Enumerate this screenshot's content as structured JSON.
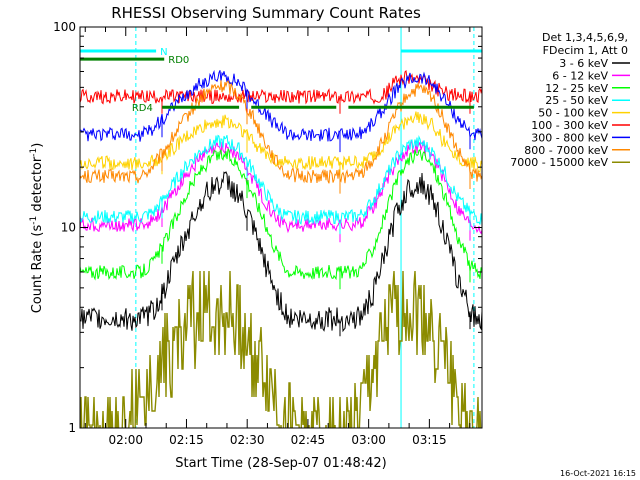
{
  "chart_data": {
    "type": "line",
    "title": "RHESSI Observing Summary Count Rates",
    "xlabel": "Start Time (28-Sep-07 01:48:42)",
    "ylabel": "Count Rate (s",
    "ylabel_sup": "-1",
    "ylabel_tail": " detector",
    "ylabel_sup2": "-1",
    "ylabel_close": ")",
    "footer": "16-Oct-2021 16:15",
    "y_scale": "log",
    "ylim": [
      1,
      100
    ],
    "xlim": [
      "01:48:42",
      "03:28:00"
    ],
    "y_ticks": [
      {
        "value": 1,
        "label": "1"
      },
      {
        "value": 10,
        "label": "10"
      },
      {
        "value": 100,
        "label": "100"
      }
    ],
    "x_ticks": [
      {
        "value": "02:00",
        "label": "02:00"
      },
      {
        "value": "02:15",
        "label": "02:15"
      },
      {
        "value": "02:30",
        "label": "02:30"
      },
      {
        "value": "02:45",
        "label": "02:45"
      },
      {
        "value": "03:00",
        "label": "03:00"
      },
      {
        "value": "03:15",
        "label": "03:15"
      }
    ],
    "legend_header": [
      "Det 1,3,4,5,6,9,",
      "FDecim 1, Att 0"
    ],
    "legend_position": "right",
    "x": [
      "01:48:42",
      "01:52:00",
      "01:56:00",
      "02:00:00",
      "02:04:00",
      "02:07:00",
      "02:10:00",
      "02:13:00",
      "02:16:00",
      "02:19:00",
      "02:22:00",
      "02:25:00",
      "02:28:00",
      "02:31:00",
      "02:34:00",
      "02:37:00",
      "02:40:00",
      "02:43:00",
      "02:46:00",
      "02:49:00",
      "02:52:00",
      "02:55:00",
      "02:58:00",
      "03:01:00",
      "03:04:00",
      "03:07:00",
      "03:10:00",
      "03:13:00",
      "03:16:00",
      "03:19:00",
      "03:22:00",
      "03:25:00",
      "03:28:00"
    ],
    "series": [
      {
        "name": "3 - 6 keV",
        "color": "#000000",
        "values": [
          3.5,
          3.5,
          3.5,
          3.5,
          3.5,
          3.9,
          5.2,
          7.5,
          10.5,
          14.0,
          16.5,
          17.0,
          14.5,
          10.5,
          7.0,
          4.8,
          3.6,
          3.5,
          3.5,
          3.5,
          3.5,
          3.5,
          3.6,
          4.6,
          7.3,
          12.0,
          16.0,
          16.5,
          14.0,
          9.0,
          5.5,
          3.8,
          3.4
        ]
      },
      {
        "name": "6 - 12 keV",
        "color": "#ff00ff",
        "values": [
          10.3,
          10.3,
          10.3,
          10.3,
          10.3,
          11.0,
          13.0,
          16.0,
          19.5,
          22.5,
          24.5,
          25.0,
          22.5,
          18.0,
          14.0,
          11.3,
          10.3,
          10.3,
          10.3,
          10.3,
          10.3,
          10.3,
          10.5,
          12.5,
          16.5,
          21.5,
          25.0,
          25.5,
          22.5,
          17.0,
          12.5,
          10.5,
          10.0
        ]
      },
      {
        "name": "12 - 25 keV",
        "color": "#00ff00",
        "values": [
          6.0,
          6.0,
          6.0,
          6.0,
          6.0,
          6.8,
          8.8,
          12.0,
          16.0,
          20.0,
          22.5,
          23.0,
          20.5,
          15.5,
          11.0,
          7.8,
          6.1,
          6.0,
          6.0,
          6.0,
          6.0,
          6.0,
          6.2,
          7.8,
          11.5,
          17.0,
          22.0,
          23.5,
          20.0,
          14.0,
          9.0,
          6.5,
          5.8
        ]
      },
      {
        "name": "25 - 50 keV",
        "color": "#00ffff",
        "values": [
          11.3,
          11.3,
          11.3,
          11.3,
          11.3,
          12.0,
          14.5,
          18.0,
          21.5,
          24.5,
          26.5,
          27.0,
          24.5,
          20.0,
          15.5,
          12.5,
          11.3,
          11.3,
          11.3,
          11.3,
          11.3,
          11.3,
          11.5,
          13.5,
          17.5,
          22.5,
          26.0,
          26.5,
          23.5,
          18.5,
          14.0,
          11.8,
          11.0
        ]
      },
      {
        "name": "50 - 100 keV",
        "color": "#ffd200",
        "values": [
          21.0,
          21.0,
          21.0,
          21.0,
          21.0,
          21.5,
          23.0,
          26.0,
          29.0,
          31.5,
          33.5,
          34.0,
          31.5,
          27.5,
          24.0,
          21.8,
          21.0,
          21.0,
          21.0,
          21.0,
          21.0,
          21.0,
          21.0,
          22.5,
          26.0,
          31.0,
          35.0,
          35.5,
          32.0,
          26.0,
          22.5,
          21.0,
          20.5
        ]
      },
      {
        "name": "100 - 300 keV",
        "color": "#ff0000",
        "values": [
          45.0,
          45.0,
          45.0,
          45.0,
          45.0,
          45.0,
          45.0,
          45.0,
          45.0,
          45.0,
          45.0,
          45.0,
          45.0,
          45.0,
          45.0,
          45.0,
          45.0,
          45.0,
          45.0,
          45.0,
          45.0,
          45.0,
          45.0,
          45.0,
          46.0,
          55.0,
          56.0,
          54.0,
          50.0,
          47.0,
          45.5,
          45.0,
          46.0
        ]
      },
      {
        "name": "300 - 800 keV",
        "color": "#0000ff",
        "values": [
          29.0,
          29.0,
          29.0,
          29.0,
          29.0,
          31.5,
          36.0,
          42.0,
          48.0,
          53.0,
          56.0,
          57.0,
          53.0,
          45.0,
          38.0,
          32.5,
          29.5,
          29.0,
          29.0,
          29.0,
          29.0,
          29.0,
          29.5,
          33.0,
          40.0,
          49.0,
          55.0,
          56.0,
          52.0,
          43.0,
          35.0,
          30.0,
          28.5
        ]
      },
      {
        "name": "800 - 7000 keV",
        "color": "#ff8800",
        "values": [
          18.0,
          18.0,
          18.0,
          18.0,
          18.0,
          20.5,
          25.0,
          31.0,
          38.0,
          45.0,
          50.0,
          51.0,
          46.0,
          37.0,
          28.0,
          21.5,
          18.5,
          18.0,
          18.0,
          18.0,
          18.0,
          18.0,
          18.5,
          21.5,
          28.0,
          38.0,
          47.0,
          49.0,
          44.0,
          33.0,
          24.0,
          19.0,
          17.5
        ]
      },
      {
        "name": "7000 - 15000 keV",
        "color": "#8b8b00",
        "values": [
          1.0,
          1.0,
          1.0,
          1.0,
          1.5,
          2.0,
          2.4,
          3.0,
          3.5,
          4.0,
          4.0,
          4.0,
          3.5,
          2.6,
          2.0,
          1.5,
          1.1,
          1.0,
          1.0,
          1.0,
          1.0,
          1.0,
          1.2,
          2.0,
          3.0,
          4.0,
          4.2,
          4.0,
          3.2,
          2.2,
          1.5,
          1.0,
          1.0
        ]
      }
    ],
    "flags": [
      {
        "label": "N",
        "color": "#00ffff",
        "level": 0.94,
        "intervals": [
          [
            "01:48:42",
            "02:07:30"
          ],
          [
            "03:08:00",
            "03:28:00"
          ]
        ]
      },
      {
        "label": "RD0",
        "color": "#008000",
        "level": 0.92,
        "label_at": "02:10:30",
        "intervals": [
          [
            "01:48:42",
            "02:09:30"
          ]
        ]
      },
      {
        "label": "RD4",
        "color": "#008000",
        "level": 0.8,
        "label_at": "02:01:30",
        "intervals": [
          [
            "02:09:00",
            "02:28:00"
          ],
          [
            "02:31:00",
            "02:52:00"
          ],
          [
            "02:55:00",
            "03:26:00"
          ]
        ]
      }
    ],
    "markers": [
      {
        "time": "01:48:42",
        "color": "#00ffff",
        "style": "solid"
      },
      {
        "time": "02:02:30",
        "color": "#00ffff",
        "style": "dashed"
      },
      {
        "time": "03:08:00",
        "color": "#00ffff",
        "style": "solid"
      },
      {
        "time": "03:26:00",
        "color": "#00ffff",
        "style": "dashed"
      }
    ],
    "steps_at": [
      "02:09:00",
      "02:30:00",
      "02:53:00",
      "03:25:00"
    ]
  }
}
